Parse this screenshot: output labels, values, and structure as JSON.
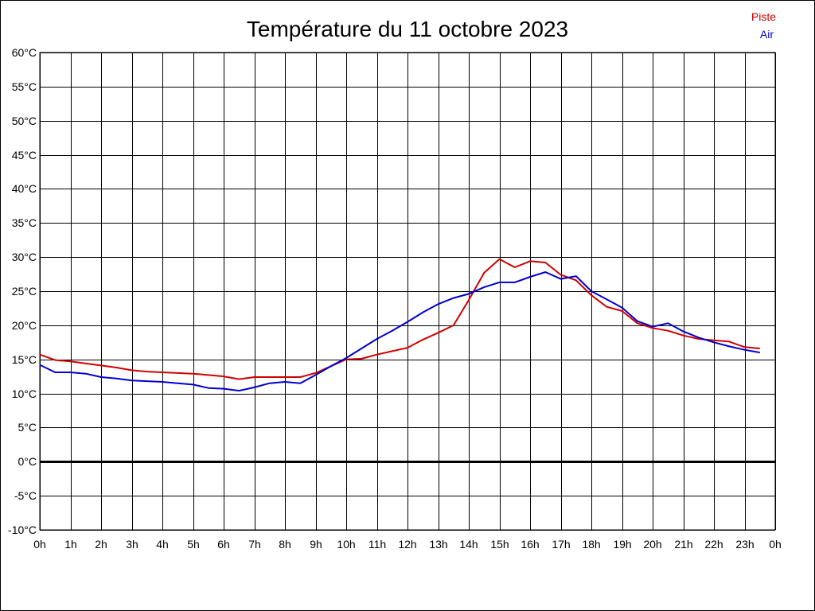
{
  "chart_data": {
    "type": "line",
    "title": "Température du 11 octobre 2023",
    "xlabel": "",
    "ylabel": "",
    "xlim": [
      0,
      24
    ],
    "ylim": [
      -10,
      60
    ],
    "x_ticks": [
      0,
      1,
      2,
      3,
      4,
      5,
      6,
      7,
      8,
      9,
      10,
      11,
      12,
      13,
      14,
      15,
      16,
      17,
      18,
      19,
      20,
      21,
      22,
      23,
      24
    ],
    "x_tick_labels": [
      "0h",
      "1h",
      "2h",
      "3h",
      "4h",
      "5h",
      "6h",
      "7h",
      "8h",
      "9h",
      "10h",
      "11h",
      "12h",
      "13h",
      "14h",
      "15h",
      "16h",
      "17h",
      "18h",
      "19h",
      "20h",
      "21h",
      "22h",
      "23h",
      "0h"
    ],
    "y_ticks": [
      -10,
      -5,
      0,
      5,
      10,
      15,
      20,
      25,
      30,
      35,
      40,
      45,
      50,
      55,
      60
    ],
    "y_tick_labels": [
      "-10°C",
      "-5°C",
      "0°C",
      "5°C",
      "10°C",
      "15°C",
      "20°C",
      "25°C",
      "30°C",
      "35°C",
      "40°C",
      "45°C",
      "50°C",
      "55°C",
      "60°C"
    ],
    "grid": true,
    "zero_line": 0,
    "legend_position": "top-right",
    "series": [
      {
        "name": "Piste",
        "color": "#d00000",
        "x": [
          0,
          0.5,
          1,
          1.5,
          2,
          2.5,
          3,
          3.5,
          4,
          4.5,
          5,
          5.5,
          6,
          6.5,
          7,
          7.5,
          8,
          8.5,
          9,
          9.5,
          10,
          10.5,
          11,
          11.5,
          12,
          12.5,
          13,
          13.5,
          14,
          14.5,
          15,
          15.5,
          16,
          16.5,
          17,
          17.5,
          18,
          18.5,
          19,
          19.5,
          20,
          20.5,
          21,
          21.5,
          22,
          22.5,
          23,
          23.5
        ],
        "values": [
          15.7,
          14.9,
          14.7,
          14.4,
          14.1,
          13.8,
          13.4,
          13.2,
          13.1,
          13.0,
          12.9,
          12.7,
          12.5,
          12.1,
          12.4,
          12.4,
          12.4,
          12.4,
          13.0,
          14.0,
          15.0,
          15.1,
          15.7,
          16.2,
          16.7,
          17.9,
          18.9,
          20.0,
          23.7,
          27.7,
          29.7,
          28.5,
          29.4,
          29.2,
          27.4,
          26.6,
          24.4,
          22.7,
          22.1,
          20.3,
          19.6,
          19.2,
          18.5,
          18.0,
          17.8,
          17.6,
          16.8,
          16.6
        ]
      },
      {
        "name": "Air",
        "color": "#0000d0",
        "x": [
          0,
          0.5,
          1,
          1.5,
          2,
          2.5,
          3,
          3.5,
          4,
          4.5,
          5,
          5.5,
          6,
          6.5,
          7,
          7.5,
          8,
          8.5,
          9,
          9.5,
          10,
          10.5,
          11,
          11.5,
          12,
          12.5,
          13,
          13.5,
          14,
          14.5,
          15,
          15.5,
          16,
          16.5,
          17,
          17.5,
          18,
          18.5,
          19,
          19.5,
          20,
          20.5,
          21,
          21.5,
          22,
          22.5,
          23,
          23.5
        ],
        "values": [
          14.2,
          13.1,
          13.1,
          12.9,
          12.4,
          12.2,
          11.9,
          11.8,
          11.7,
          11.5,
          11.3,
          10.8,
          10.7,
          10.4,
          10.9,
          11.5,
          11.7,
          11.5,
          12.7,
          14.0,
          15.2,
          16.6,
          18.0,
          19.2,
          20.5,
          21.9,
          23.1,
          24.0,
          24.6,
          25.6,
          26.3,
          26.3,
          27.1,
          27.8,
          26.8,
          27.2,
          25.0,
          23.8,
          22.6,
          20.6,
          19.8,
          20.3,
          19.1,
          18.2,
          17.5,
          16.9,
          16.4,
          16.0
        ]
      }
    ]
  }
}
